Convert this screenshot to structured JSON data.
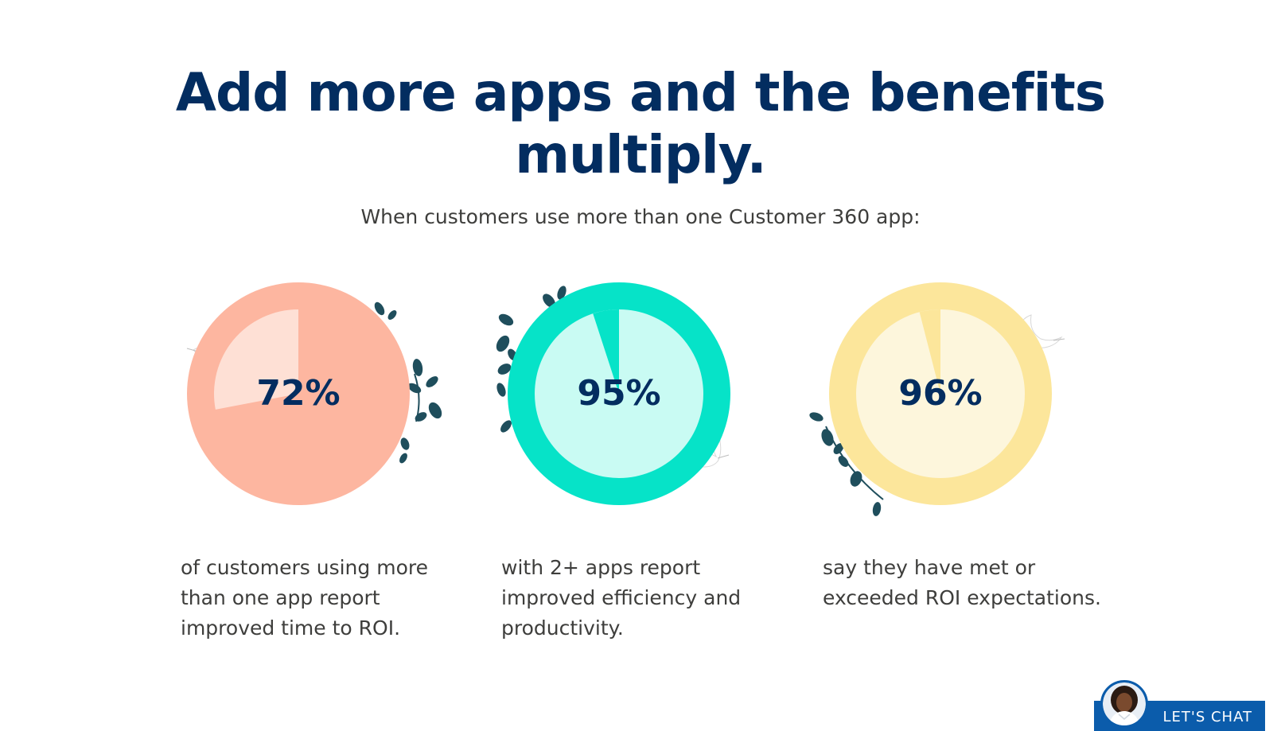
{
  "headline": {
    "line1": "Add more apps and the benefits",
    "line2": "multiply."
  },
  "subhead": "When customers use more than one Customer 360 app:",
  "stats": [
    {
      "value": "72%",
      "fraction": 0.72,
      "description_lines": [
        "of customers using more",
        "than one app report",
        "improved time to ROI."
      ],
      "ring_color": "#fdb6a0",
      "inner_color": "#fee0d5",
      "decor": "leaves-and-bird-icon"
    },
    {
      "value": "95%",
      "fraction": 0.95,
      "description_lines": [
        "with 2+ apps report",
        "improved efficiency and",
        "productivity."
      ],
      "ring_color": "#06e3c8",
      "inner_color": "#c9fbf3",
      "decor": "leaves-and-bird-icon"
    },
    {
      "value": "96%",
      "fraction": 0.96,
      "description_lines": [
        "say they have met or",
        "exceeded ROI expectations."
      ],
      "ring_color": "#fce69b",
      "inner_color": "#fdf6dc",
      "decor": "leaves-and-bird-icon"
    }
  ],
  "chat": {
    "label": "LET'S CHAT",
    "avatar_icon": "agent-avatar-icon"
  },
  "colors": {
    "headline": "#032d60",
    "body_text": "#3e3e3c",
    "chat_button": "#0b5cab",
    "leaf": "#1f4e5c"
  }
}
